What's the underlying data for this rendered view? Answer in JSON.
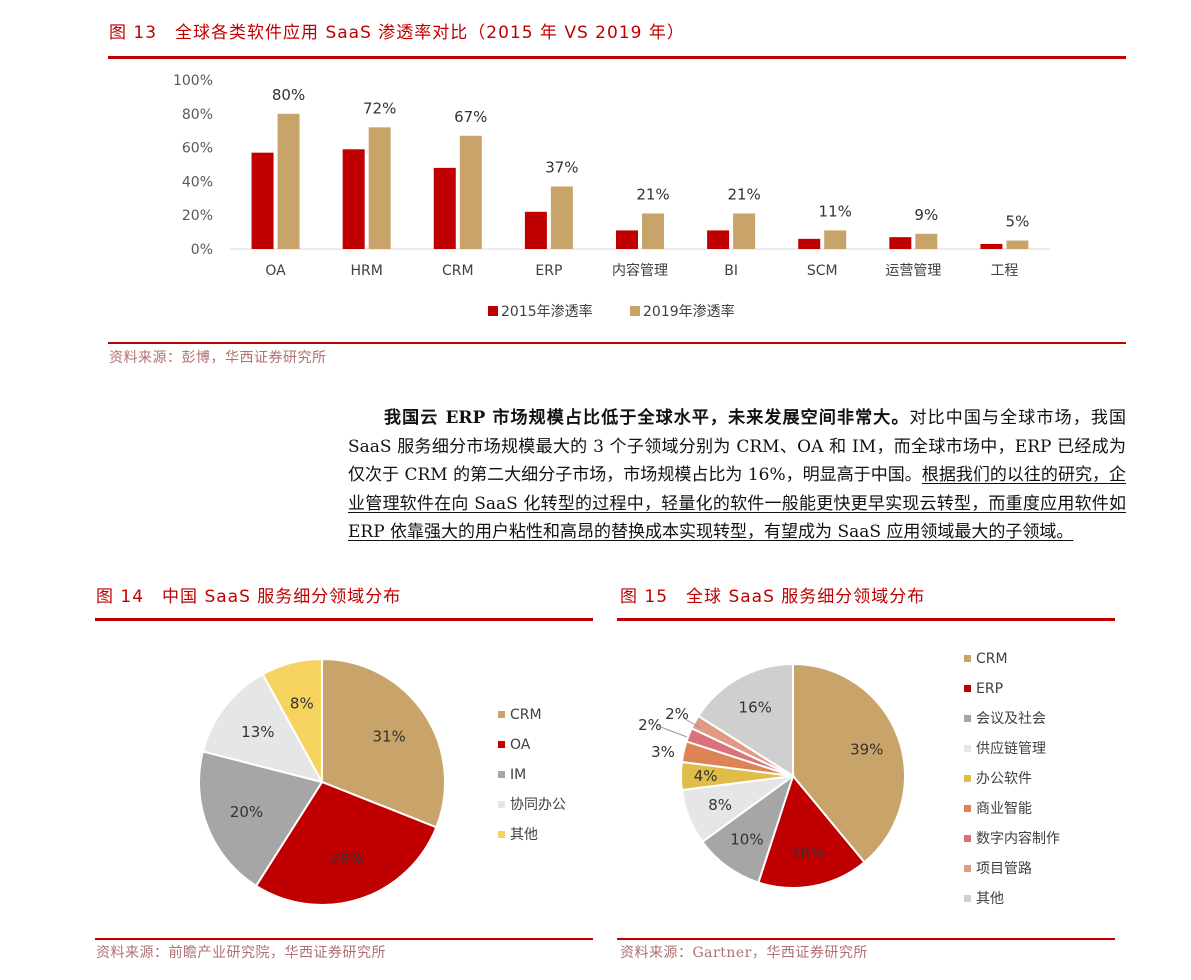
{
  "fig13": {
    "title": "图 13　全球各类软件应用 SaaS 渗透率对比（2015 年 VS 2019 年）",
    "source": "资料来源：彭博，华西证券研究所"
  },
  "fig14": {
    "title": "图 14　中国 SaaS 服务细分领域分布",
    "source": "资料来源：前瞻产业研究院，华西证券研究所"
  },
  "fig15": {
    "title": "图 15　全球 SaaS 服务细分领域分布",
    "source": "资料来源：Gartner，华西证券研究所"
  },
  "paragraph": {
    "bold": "我国云 ERP 市场规模占比低于全球水平，未来发展空间非常大。",
    "normal": "对比中国与全球市场，我国 SaaS 服务细分市场规模最大的 3 个子领域分别为 CRM、OA 和 IM，而全球市场中，ERP 已经成为仅次于 CRM 的第二大细分子市场，市场规模占比为 16%，明显高于中国。",
    "underlined": "根据我们的以往的研究，企业管理软件在向 SaaS 化转型的过程中，轻量化的软件一般能更快更早实现云转型，而重度应用软件如 ERP 依靠强大的用户粘性和高昂的替换成本实现转型，有望成为 SaaS 应用领域最大的子领域。"
  },
  "chart_data": [
    {
      "type": "bar",
      "categories": [
        "OA",
        "HRM",
        "CRM",
        "ERP",
        "内容管理",
        "BI",
        "SCM",
        "运营管理",
        "工程"
      ],
      "series": [
        {
          "name": "2015年渗透率",
          "color": "#c00000",
          "values": [
            57,
            59,
            48,
            22,
            11,
            11,
            6,
            7,
            3
          ]
        },
        {
          "name": "2019年渗透率",
          "color": "#c9a46a",
          "values": [
            80,
            72,
            67,
            37,
            21,
            21,
            11,
            9,
            5
          ]
        }
      ],
      "data_labels_series": "2019年渗透率",
      "data_labels": [
        "80%",
        "72%",
        "67%",
        "37%",
        "21%",
        "21%",
        "11%",
        "9%",
        "5%"
      ],
      "yticks": [
        "100%",
        "80%",
        "60%",
        "40%",
        "20%",
        "0%"
      ],
      "ylim": [
        0,
        100
      ],
      "legend_position": "bottom",
      "grid": false
    },
    {
      "type": "pie",
      "labels": [
        "CRM",
        "OA",
        "IM",
        "协同办公",
        "其他"
      ],
      "values": [
        31,
        28,
        20,
        13,
        8
      ],
      "value_labels": [
        "31%",
        "28%",
        "20%",
        "13%",
        "8%"
      ],
      "colors": [
        "#c9a46a",
        "#c00000",
        "#a6a6a6",
        "#e6e6e6",
        "#f6d35e"
      ],
      "legend_position": "right"
    },
    {
      "type": "pie",
      "labels": [
        "CRM",
        "ERP",
        "会议及社会",
        "供应链管理",
        "办公软件",
        "商业智能",
        "数字内容制作",
        "项目管路",
        "其他"
      ],
      "values": [
        39,
        16,
        10,
        8,
        4,
        3,
        2,
        2,
        16
      ],
      "value_labels": [
        "39%",
        "16%",
        "10%",
        "8%",
        "4%",
        "3%",
        "2%",
        "2%",
        "16%"
      ],
      "colors": [
        "#c9a46a",
        "#c00000",
        "#a6a6a6",
        "#e6e6e6",
        "#e0bd48",
        "#de8355",
        "#d9727a",
        "#e29a86",
        "#cfcfcf"
      ],
      "legend_position": "right"
    }
  ]
}
